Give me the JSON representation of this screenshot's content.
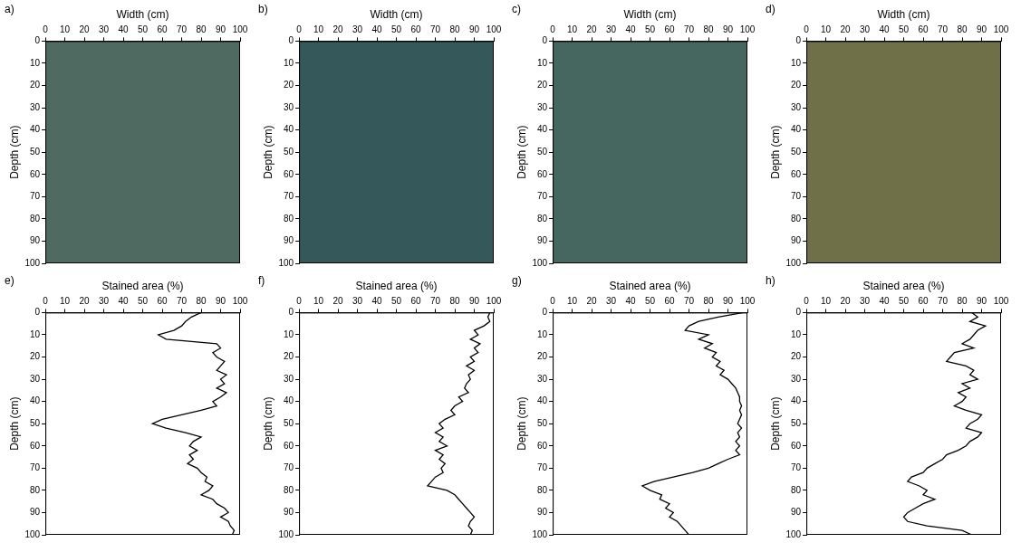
{
  "chart_data": [
    {
      "panel": "a)",
      "type": "image",
      "color": "#4f6a60",
      "xlabel": "Width (cm)",
      "ylabel": "Depth (cm)",
      "xlim": [
        0,
        100
      ],
      "xticks": [
        0,
        10,
        20,
        30,
        40,
        50,
        60,
        70,
        80,
        90,
        100
      ],
      "ylim": [
        100,
        0
      ],
      "yticks": [
        0,
        10,
        20,
        30,
        40,
        50,
        60,
        70,
        80,
        90,
        100
      ],
      "grid": false
    },
    {
      "panel": "b)",
      "type": "image",
      "color": "#35585a",
      "xlabel": "Width (cm)",
      "ylabel": "Depth (cm)",
      "xlim": [
        0,
        100
      ],
      "xticks": [
        0,
        10,
        20,
        30,
        40,
        50,
        60,
        70,
        80,
        90,
        100
      ],
      "ylim": [
        100,
        0
      ],
      "yticks": [
        0,
        10,
        20,
        30,
        40,
        50,
        60,
        70,
        80,
        90,
        100
      ],
      "grid": false
    },
    {
      "panel": "c)",
      "type": "image",
      "color": "#46675f",
      "xlabel": "Width (cm)",
      "ylabel": "Depth (cm)",
      "xlim": [
        0,
        100
      ],
      "xticks": [
        0,
        10,
        20,
        30,
        40,
        50,
        60,
        70,
        80,
        90,
        100
      ],
      "ylim": [
        100,
        0
      ],
      "yticks": [
        0,
        10,
        20,
        30,
        40,
        50,
        60,
        70,
        80,
        90,
        100
      ],
      "grid": false
    },
    {
      "panel": "d)",
      "type": "image",
      "color": "#6f7048",
      "xlabel": "Width (cm)",
      "ylabel": "Depth (cm)",
      "xlim": [
        0,
        100
      ],
      "xticks": [
        0,
        10,
        20,
        30,
        40,
        50,
        60,
        70,
        80,
        90,
        100
      ],
      "ylim": [
        100,
        0
      ],
      "yticks": [
        0,
        10,
        20,
        30,
        40,
        50,
        60,
        70,
        80,
        90,
        100
      ],
      "grid": false
    },
    {
      "panel": "e)",
      "type": "line",
      "color": "#000000",
      "xlabel": "Stained area (%)",
      "ylabel": "Depth (cm)",
      "xlim": [
        0,
        100
      ],
      "xticks": [
        0,
        10,
        20,
        30,
        40,
        50,
        60,
        70,
        80,
        90,
        100
      ],
      "ylim": [
        100,
        0
      ],
      "yticks": [
        0,
        10,
        20,
        30,
        40,
        50,
        60,
        70,
        80,
        90,
        100
      ],
      "grid": false,
      "y": [
        0,
        2,
        4,
        6,
        8,
        10,
        12,
        14,
        16,
        18,
        20,
        22,
        24,
        26,
        28,
        30,
        32,
        34,
        36,
        38,
        40,
        42,
        44,
        46,
        48,
        50,
        52,
        54,
        56,
        58,
        60,
        62,
        64,
        66,
        68,
        70,
        72,
        74,
        76,
        78,
        80,
        82,
        84,
        86,
        88,
        90,
        92,
        94,
        96,
        98,
        100
      ],
      "values": [
        80,
        75,
        72,
        70,
        66,
        58,
        62,
        88,
        90,
        86,
        88,
        92,
        90,
        88,
        93,
        90,
        92,
        88,
        93,
        90,
        86,
        88,
        80,
        70,
        60,
        55,
        62,
        72,
        80,
        76,
        74,
        78,
        74,
        76,
        73,
        78,
        80,
        83,
        82,
        86,
        84,
        80,
        86,
        88,
        92,
        94,
        90,
        94,
        95,
        97,
        96
      ]
    },
    {
      "panel": "f)",
      "type": "line",
      "color": "#000000",
      "xlabel": "Stained area (%)",
      "ylabel": "Depth (cm)",
      "xlim": [
        0,
        100
      ],
      "xticks": [
        0,
        10,
        20,
        30,
        40,
        50,
        60,
        70,
        80,
        90,
        100
      ],
      "ylim": [
        100,
        0
      ],
      "yticks": [
        0,
        10,
        20,
        30,
        40,
        50,
        60,
        70,
        80,
        90,
        100
      ],
      "grid": false,
      "y": [
        0,
        2,
        4,
        6,
        8,
        10,
        12,
        14,
        16,
        18,
        20,
        22,
        24,
        26,
        28,
        30,
        32,
        34,
        36,
        38,
        40,
        42,
        44,
        46,
        48,
        50,
        52,
        54,
        56,
        58,
        60,
        62,
        64,
        66,
        68,
        70,
        72,
        74,
        76,
        78,
        80,
        82,
        84,
        86,
        88,
        90,
        92,
        94,
        96,
        98,
        100
      ],
      "values": [
        98,
        97,
        98,
        95,
        90,
        92,
        88,
        93,
        90,
        92,
        88,
        90,
        86,
        90,
        87,
        88,
        86,
        85,
        87,
        82,
        84,
        80,
        78,
        80,
        75,
        72,
        74,
        70,
        74,
        72,
        76,
        70,
        74,
        72,
        75,
        73,
        74,
        70,
        68,
        66,
        76,
        80,
        82,
        84,
        86,
        88,
        90,
        88,
        87,
        89,
        88
      ]
    },
    {
      "panel": "g)",
      "type": "line",
      "color": "#000000",
      "xlabel": "Stained area (%)",
      "ylabel": "Depth (cm)",
      "xlim": [
        0,
        100
      ],
      "xticks": [
        0,
        10,
        20,
        30,
        40,
        50,
        60,
        70,
        80,
        90,
        100
      ],
      "ylim": [
        100,
        0
      ],
      "yticks": [
        0,
        10,
        20,
        30,
        40,
        50,
        60,
        70,
        80,
        90,
        100
      ],
      "grid": false,
      "y": [
        0,
        2,
        4,
        6,
        8,
        10,
        12,
        14,
        16,
        18,
        20,
        22,
        24,
        26,
        28,
        30,
        32,
        34,
        36,
        38,
        40,
        42,
        44,
        46,
        48,
        50,
        52,
        54,
        56,
        58,
        60,
        62,
        64,
        66,
        68,
        70,
        72,
        74,
        76,
        78,
        80,
        82,
        84,
        86,
        88,
        90,
        92,
        94,
        96,
        98,
        100
      ],
      "values": [
        98,
        85,
        75,
        70,
        68,
        80,
        75,
        82,
        78,
        84,
        82,
        86,
        84,
        88,
        86,
        90,
        92,
        94,
        95,
        96,
        96,
        97,
        96,
        97,
        96,
        95,
        97,
        95,
        96,
        94,
        96,
        94,
        96,
        90,
        85,
        80,
        72,
        62,
        52,
        46,
        50,
        56,
        55,
        60,
        58,
        62,
        60,
        64,
        66,
        68,
        70
      ]
    },
    {
      "panel": "h)",
      "type": "line",
      "color": "#000000",
      "xlabel": "Stained area (%)",
      "ylabel": "Depth (cm)",
      "xlim": [
        0,
        100
      ],
      "xticks": [
        0,
        10,
        20,
        30,
        40,
        50,
        60,
        70,
        80,
        90,
        100
      ],
      "ylim": [
        100,
        0
      ],
      "yticks": [
        0,
        10,
        20,
        30,
        40,
        50,
        60,
        70,
        80,
        90,
        100
      ],
      "grid": false,
      "y": [
        0,
        2,
        4,
        6,
        8,
        10,
        12,
        14,
        16,
        18,
        20,
        22,
        24,
        26,
        28,
        30,
        32,
        34,
        36,
        38,
        40,
        42,
        44,
        46,
        48,
        50,
        52,
        54,
        56,
        58,
        60,
        62,
        64,
        66,
        68,
        70,
        72,
        74,
        76,
        78,
        80,
        82,
        84,
        86,
        88,
        90,
        92,
        94,
        96,
        98,
        100
      ],
      "values": [
        85,
        88,
        84,
        92,
        88,
        86,
        84,
        80,
        86,
        76,
        74,
        72,
        82,
        86,
        84,
        88,
        80,
        84,
        78,
        82,
        80,
        76,
        82,
        90,
        88,
        84,
        82,
        90,
        88,
        84,
        82,
        78,
        72,
        70,
        66,
        62,
        60,
        54,
        52,
        58,
        62,
        60,
        66,
        60,
        56,
        52,
        50,
        52,
        62,
        80,
        85
      ]
    }
  ]
}
